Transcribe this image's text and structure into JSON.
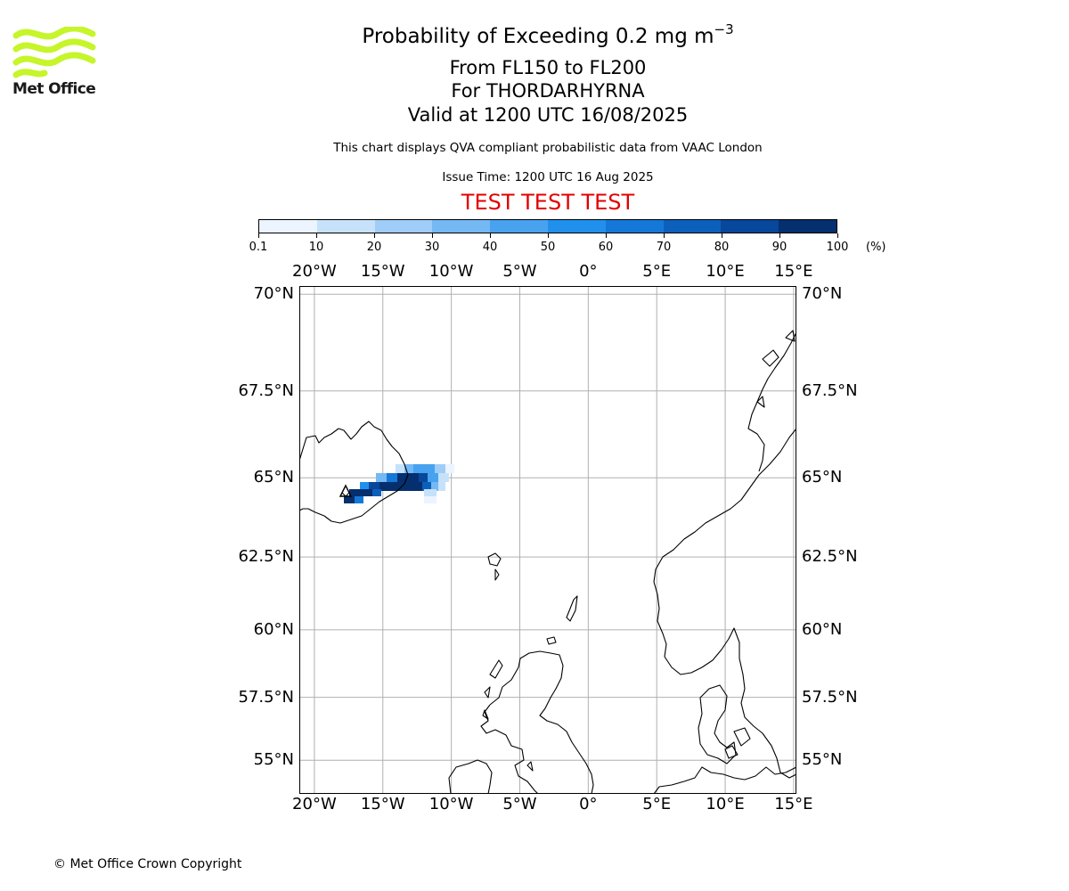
{
  "branding": {
    "logo_text": "Met Office",
    "copyright": "© Met Office Crown Copyright"
  },
  "header": {
    "title_prefix": "Probability of Exceeding 0.2 mg m",
    "title_exponent": "−3",
    "flight_levels": "From FL150 to FL200",
    "volcano": "For THORDARHYRNA",
    "valid_time": "Valid at 1200 UTC 16/08/2025",
    "subtitle": "This chart displays QVA compliant probabilistic data from VAAC London",
    "issue_time": "Issue Time: 1200 UTC 16 Aug 2025",
    "banner": "TEST TEST TEST"
  },
  "colorbar": {
    "ticks": [
      "0.1",
      "10",
      "20",
      "30",
      "40",
      "50",
      "60",
      "70",
      "80",
      "90",
      "100"
    ],
    "unit": "(%)",
    "colors": [
      "#ebf4ff",
      "#c6e2fb",
      "#9fcdf7",
      "#74b8f4",
      "#48a2f0",
      "#2190ed",
      "#1478d8",
      "#0c60bc",
      "#07479c",
      "#052f6e"
    ]
  },
  "map": {
    "lon_labels": [
      "20°W",
      "15°W",
      "10°W",
      "5°W",
      "0°",
      "5°E",
      "10°E",
      "15°E"
    ],
    "lat_labels": [
      "70°N",
      "67.5°N",
      "65°N",
      "62.5°N",
      "60°N",
      "57.5°N",
      "55°N"
    ],
    "extent": {
      "lon_min": -21.1,
      "lon_max": 15.2,
      "lat_min": 53.6,
      "lat_max": 70.2
    },
    "volcano_marker": "volcano-triangle"
  }
}
